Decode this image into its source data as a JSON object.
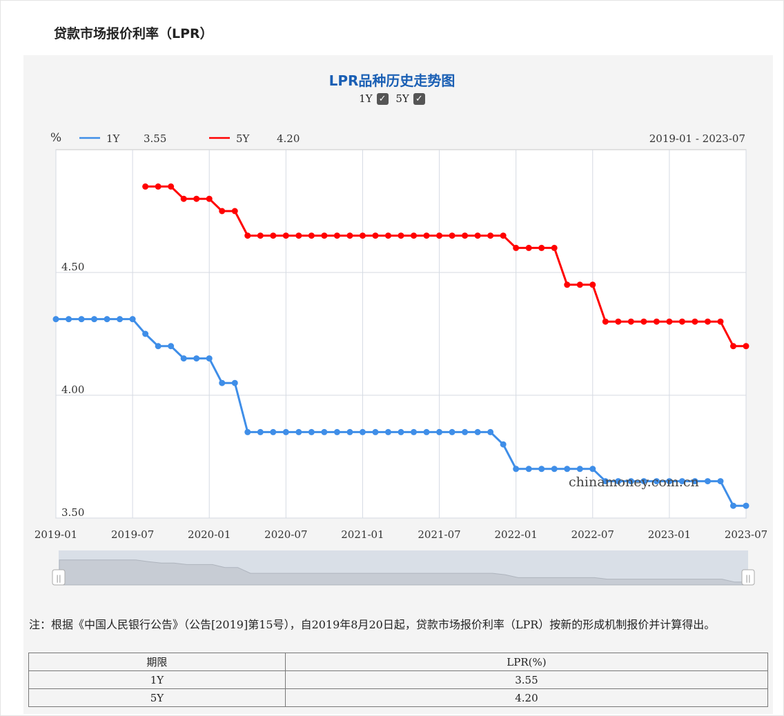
{
  "page": {
    "title": "贷款市场报价利率（LPR）",
    "watermark": "chinamoney.com.cn"
  },
  "chart_header": {
    "title": "LPR品种历史走势图",
    "toggles": [
      {
        "label": "1Y",
        "checked": true
      },
      {
        "label": "5Y",
        "checked": true
      }
    ],
    "unit_label": "%",
    "range_label": "2019-01 - 2023-07"
  },
  "legend": [
    {
      "name": "1Y",
      "value": "3.55",
      "color": "#3f8ee8"
    },
    {
      "name": "5Y",
      "value": "4.20",
      "color": "#ff0000"
    }
  ],
  "chart_data": {
    "type": "line",
    "x_range": [
      "2019-01",
      "2023-07"
    ],
    "x_ticks": [
      "2019-01",
      "2019-07",
      "2020-01",
      "2020-07",
      "2021-01",
      "2021-07",
      "2022-01",
      "2022-07",
      "2023-01",
      "2023-07"
    ],
    "y_ticks": [
      "3.50",
      "4.00",
      "4.50"
    ],
    "ylim": [
      3.5,
      5.0
    ],
    "grid": true,
    "legend_position": "top-left",
    "series": [
      {
        "name": "1Y",
        "color": "#3f8ee8",
        "points": [
          [
            "2019-01",
            4.31
          ],
          [
            "2019-02",
            4.31
          ],
          [
            "2019-03",
            4.31
          ],
          [
            "2019-04",
            4.31
          ],
          [
            "2019-05",
            4.31
          ],
          [
            "2019-06",
            4.31
          ],
          [
            "2019-07",
            4.31
          ],
          [
            "2019-08",
            4.25
          ],
          [
            "2019-09",
            4.2
          ],
          [
            "2019-10",
            4.2
          ],
          [
            "2019-11",
            4.15
          ],
          [
            "2019-12",
            4.15
          ],
          [
            "2020-01",
            4.15
          ],
          [
            "2020-02",
            4.05
          ],
          [
            "2020-03",
            4.05
          ],
          [
            "2020-04",
            3.85
          ],
          [
            "2020-05",
            3.85
          ],
          [
            "2020-06",
            3.85
          ],
          [
            "2020-07",
            3.85
          ],
          [
            "2020-08",
            3.85
          ],
          [
            "2020-09",
            3.85
          ],
          [
            "2020-10",
            3.85
          ],
          [
            "2020-11",
            3.85
          ],
          [
            "2020-12",
            3.85
          ],
          [
            "2021-01",
            3.85
          ],
          [
            "2021-02",
            3.85
          ],
          [
            "2021-03",
            3.85
          ],
          [
            "2021-04",
            3.85
          ],
          [
            "2021-05",
            3.85
          ],
          [
            "2021-06",
            3.85
          ],
          [
            "2021-07",
            3.85
          ],
          [
            "2021-08",
            3.85
          ],
          [
            "2021-09",
            3.85
          ],
          [
            "2021-10",
            3.85
          ],
          [
            "2021-11",
            3.85
          ],
          [
            "2021-12",
            3.8
          ],
          [
            "2022-01",
            3.7
          ],
          [
            "2022-02",
            3.7
          ],
          [
            "2022-03",
            3.7
          ],
          [
            "2022-04",
            3.7
          ],
          [
            "2022-05",
            3.7
          ],
          [
            "2022-06",
            3.7
          ],
          [
            "2022-07",
            3.7
          ],
          [
            "2022-08",
            3.65
          ],
          [
            "2022-09",
            3.65
          ],
          [
            "2022-10",
            3.65
          ],
          [
            "2022-11",
            3.65
          ],
          [
            "2022-12",
            3.65
          ],
          [
            "2023-01",
            3.65
          ],
          [
            "2023-02",
            3.65
          ],
          [
            "2023-03",
            3.65
          ],
          [
            "2023-04",
            3.65
          ],
          [
            "2023-05",
            3.65
          ],
          [
            "2023-06",
            3.55
          ],
          [
            "2023-07",
            3.55
          ]
        ]
      },
      {
        "name": "5Y",
        "color": "#ff0000",
        "points": [
          [
            "2019-08",
            4.85
          ],
          [
            "2019-09",
            4.85
          ],
          [
            "2019-10",
            4.85
          ],
          [
            "2019-11",
            4.8
          ],
          [
            "2019-12",
            4.8
          ],
          [
            "2020-01",
            4.8
          ],
          [
            "2020-02",
            4.75
          ],
          [
            "2020-03",
            4.75
          ],
          [
            "2020-04",
            4.65
          ],
          [
            "2020-05",
            4.65
          ],
          [
            "2020-06",
            4.65
          ],
          [
            "2020-07",
            4.65
          ],
          [
            "2020-08",
            4.65
          ],
          [
            "2020-09",
            4.65
          ],
          [
            "2020-10",
            4.65
          ],
          [
            "2020-11",
            4.65
          ],
          [
            "2020-12",
            4.65
          ],
          [
            "2021-01",
            4.65
          ],
          [
            "2021-02",
            4.65
          ],
          [
            "2021-03",
            4.65
          ],
          [
            "2021-04",
            4.65
          ],
          [
            "2021-05",
            4.65
          ],
          [
            "2021-06",
            4.65
          ],
          [
            "2021-07",
            4.65
          ],
          [
            "2021-08",
            4.65
          ],
          [
            "2021-09",
            4.65
          ],
          [
            "2021-10",
            4.65
          ],
          [
            "2021-11",
            4.65
          ],
          [
            "2021-12",
            4.65
          ],
          [
            "2022-01",
            4.6
          ],
          [
            "2022-02",
            4.6
          ],
          [
            "2022-03",
            4.6
          ],
          [
            "2022-04",
            4.6
          ],
          [
            "2022-05",
            4.45
          ],
          [
            "2022-06",
            4.45
          ],
          [
            "2022-07",
            4.45
          ],
          [
            "2022-08",
            4.3
          ],
          [
            "2022-09",
            4.3
          ],
          [
            "2022-10",
            4.3
          ],
          [
            "2022-11",
            4.3
          ],
          [
            "2022-12",
            4.3
          ],
          [
            "2023-01",
            4.3
          ],
          [
            "2023-02",
            4.3
          ],
          [
            "2023-03",
            4.3
          ],
          [
            "2023-04",
            4.3
          ],
          [
            "2023-05",
            4.3
          ],
          [
            "2023-06",
            4.2
          ],
          [
            "2023-07",
            4.2
          ]
        ]
      }
    ]
  },
  "note": "注：根据《中国人民银行公告》（公告[2019]第15号），自2019年8月20日起，贷款市场报价利率（LPR）按新的形成机制报价并计算得出。",
  "table": {
    "headers": [
      "期限",
      "LPR(%)"
    ],
    "rows": [
      [
        "1Y",
        "3.55"
      ],
      [
        "5Y",
        "4.20"
      ]
    ]
  }
}
